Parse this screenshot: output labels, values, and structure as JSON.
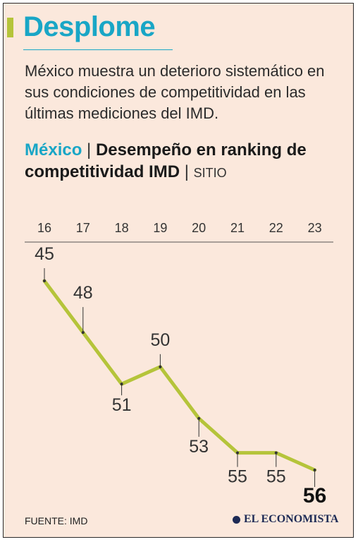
{
  "header": {
    "title": "Desplome",
    "subtitle": "México muestra un deterioro sistemático en sus condiciones de competitividad en las últimas mediciones del IMD."
  },
  "chart_heading": {
    "country": "México",
    "separator": "|",
    "text": "Desempeño en ranking de competitividad IMD",
    "separator2": "|",
    "unit": "SITIO"
  },
  "chart_data": {
    "type": "line",
    "x": [
      "16",
      "17",
      "18",
      "19",
      "20",
      "21",
      "22",
      "23"
    ],
    "values": [
      45,
      48,
      51,
      50,
      53,
      55,
      55,
      56
    ],
    "ylim": [
      44,
      57
    ],
    "y_inverted": true,
    "grid": false,
    "line_color": "#b5c43a",
    "highlight_last": true
  },
  "footer": {
    "source": "FUENTE: IMD",
    "logo_text": "EL ECONOMISTA"
  },
  "colors": {
    "accent": "#19a6c6",
    "line": "#b5c43a",
    "background": "#fbe8dc"
  }
}
